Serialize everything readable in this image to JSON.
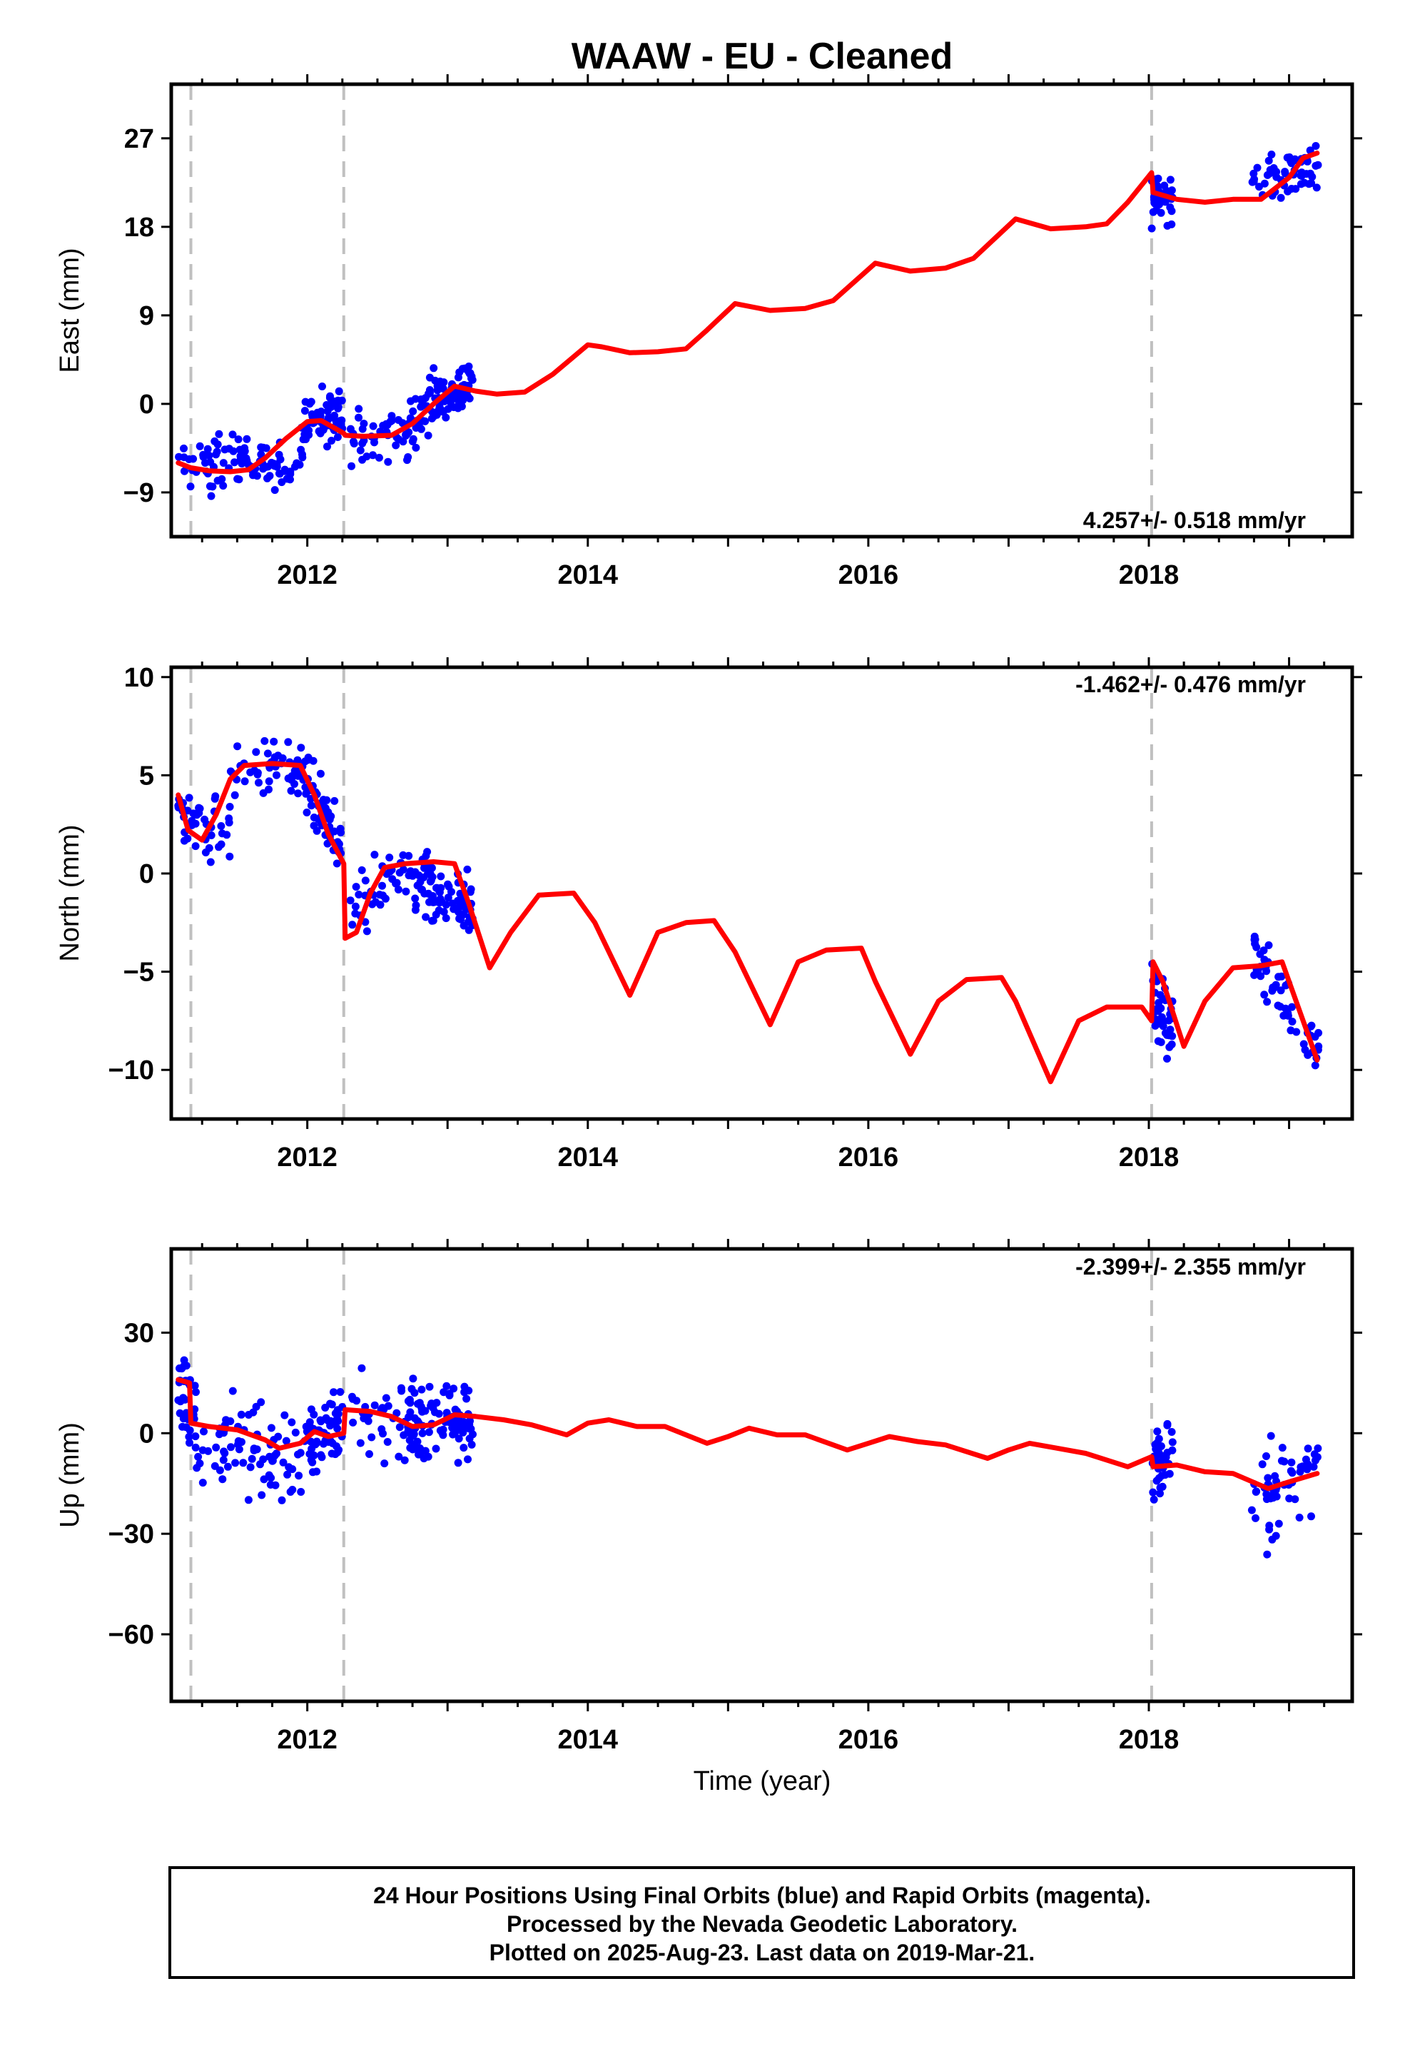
{
  "title": "WAAW  - EU - Cleaned",
  "xlabel": "Time (year)",
  "colors": {
    "data": "#0000ff",
    "model": "#ff0000",
    "break": "#c0c0c0",
    "frame": "#000000"
  },
  "footer": {
    "lines": [
      "24 Hour Positions Using Final Orbits (blue) and Rapid Orbits (magenta).",
      "Processed by the Nevada Geodetic Laboratory.",
      "Plotted on 2025-Aug-23. Last data on 2019-Mar-21."
    ]
  },
  "chart_data": [
    {
      "type": "scatter",
      "name": "east",
      "ylabel": "East (mm)",
      "rate": "4.257+/- 0.518 mm/yr",
      "xlim": [
        2011.03,
        2019.45
      ],
      "ylim": [
        -13.5,
        32.5
      ],
      "yticks": [
        27,
        18,
        9,
        0,
        -9
      ],
      "ytick_labels": [
        "27",
        "18",
        "9",
        "0",
        "−9"
      ],
      "xticks": [
        2012,
        2014,
        2016,
        2018
      ],
      "xtick_labels": [
        "2012",
        "2014",
        "2016",
        "2018"
      ],
      "breaks": [
        2011.17,
        2012.26,
        2018.02
      ],
      "data_segments": [
        {
          "x0": 2011.08,
          "x1": 2011.98,
          "y0": -6.5,
          "y1": -5.5,
          "spread": 2.6,
          "n": 95
        },
        {
          "x0": 2011.98,
          "x1": 2012.25,
          "y0": -2.0,
          "y1": -1.0,
          "spread": 2.7,
          "n": 60
        },
        {
          "x0": 2012.3,
          "x1": 2012.75,
          "y0": -3.5,
          "y1": -2.5,
          "spread": 2.6,
          "n": 45
        },
        {
          "x0": 2012.75,
          "x1": 2013.18,
          "y0": -1.5,
          "y1": 2.5,
          "spread": 2.7,
          "n": 90
        },
        {
          "x0": 2018.02,
          "x1": 2018.17,
          "y0": 20.5,
          "y1": 21.5,
          "spread": 2.4,
          "n": 40
        },
        {
          "x0": 2018.73,
          "x1": 2019.22,
          "y0": 23.0,
          "y1": 24.0,
          "spread": 2.4,
          "n": 55
        }
      ],
      "model": {
        "x": [
          2011.08,
          2011.17,
          2011.3,
          2011.45,
          2011.58,
          2011.7,
          2011.85,
          2012.0,
          2012.1,
          2012.2,
          2012.26,
          2012.27,
          2012.4,
          2012.6,
          2012.75,
          2012.9,
          2013.05,
          2013.2,
          2013.35,
          2013.55,
          2013.75,
          2014.0,
          2014.1,
          2014.3,
          2014.5,
          2014.7,
          2014.85,
          2015.05,
          2015.3,
          2015.55,
          2015.75,
          2016.05,
          2016.3,
          2016.55,
          2016.75,
          2017.05,
          2017.3,
          2017.55,
          2017.7,
          2017.85,
          2018.02,
          2018.03,
          2018.2,
          2018.4,
          2018.6,
          2018.8,
          2019.0,
          2019.1,
          2019.2
        ],
        "y": [
          -6.0,
          -6.5,
          -6.8,
          -6.9,
          -6.7,
          -5.5,
          -3.5,
          -1.8,
          -1.7,
          -2.5,
          -3.0,
          -3.2,
          -3.3,
          -3.2,
          -2.0,
          0.0,
          1.8,
          1.3,
          1.0,
          1.2,
          3.0,
          6.0,
          5.8,
          5.2,
          5.3,
          5.6,
          7.5,
          10.2,
          9.5,
          9.7,
          10.5,
          14.3,
          13.5,
          13.8,
          14.8,
          18.8,
          17.8,
          18.0,
          18.3,
          20.5,
          23.5,
          21.5,
          20.8,
          20.5,
          20.8,
          20.8,
          23.0,
          25.0,
          25.5
        ]
      }
    },
    {
      "type": "scatter",
      "name": "north",
      "ylabel": "North (mm)",
      "rate": "-1.462+/- 0.476 mm/yr",
      "xlim": [
        2011.03,
        2019.45
      ],
      "ylim": [
        -12.5,
        10.5
      ],
      "yticks": [
        10,
        5,
        0,
        -5,
        -10
      ],
      "ytick_labels": [
        "10",
        "5",
        "0",
        "−5",
        "−10"
      ],
      "xticks": [
        2012,
        2014,
        2016,
        2018
      ],
      "xtick_labels": [
        "2012",
        "2014",
        "2016",
        "2018"
      ],
      "breaks": [
        2011.17,
        2012.26,
        2018.02
      ],
      "data_segments": [
        {
          "x0": 2011.08,
          "x1": 2011.45,
          "y0": 3.0,
          "y1": 2.0,
          "spread": 1.6,
          "n": 45
        },
        {
          "x0": 2011.45,
          "x1": 2011.98,
          "y0": 5.0,
          "y1": 5.5,
          "spread": 1.3,
          "n": 55
        },
        {
          "x0": 2011.98,
          "x1": 2012.25,
          "y0": 4.5,
          "y1": 1.0,
          "spread": 1.6,
          "n": 60
        },
        {
          "x0": 2012.3,
          "x1": 2012.75,
          "y0": -2.0,
          "y1": 0.5,
          "spread": 1.5,
          "n": 40
        },
        {
          "x0": 2012.75,
          "x1": 2013.18,
          "y0": -0.5,
          "y1": -1.5,
          "spread": 1.6,
          "n": 90
        },
        {
          "x0": 2018.02,
          "x1": 2018.17,
          "y0": -6.5,
          "y1": -8.0,
          "spread": 1.5,
          "n": 40
        },
        {
          "x0": 2018.73,
          "x1": 2019.22,
          "y0": -4.0,
          "y1": -9.0,
          "spread": 1.4,
          "n": 55
        }
      ],
      "model": {
        "x": [
          2011.08,
          2011.15,
          2011.25,
          2011.35,
          2011.45,
          2011.55,
          2011.75,
          2011.95,
          2012.05,
          2012.15,
          2012.26,
          2012.27,
          2012.35,
          2012.45,
          2012.55,
          2012.7,
          2012.9,
          2013.05,
          2013.15,
          2013.3,
          2013.45,
          2013.65,
          2013.9,
          2014.05,
          2014.3,
          2014.5,
          2014.7,
          2014.9,
          2015.05,
          2015.3,
          2015.5,
          2015.7,
          2015.95,
          2016.05,
          2016.3,
          2016.5,
          2016.7,
          2016.95,
          2017.05,
          2017.3,
          2017.5,
          2017.7,
          2017.95,
          2018.02,
          2018.03,
          2018.1,
          2018.25,
          2018.4,
          2018.6,
          2018.8,
          2018.95,
          2019.05,
          2019.2
        ],
        "y": [
          4.0,
          2.2,
          1.7,
          3.0,
          4.8,
          5.5,
          5.6,
          5.5,
          4.0,
          2.0,
          0.5,
          -3.3,
          -3.0,
          -1.0,
          0.3,
          0.5,
          0.6,
          0.5,
          -1.5,
          -4.8,
          -3.0,
          -1.1,
          -1.0,
          -2.5,
          -6.2,
          -3.0,
          -2.5,
          -2.4,
          -4.0,
          -7.7,
          -4.5,
          -3.9,
          -3.8,
          -5.5,
          -9.2,
          -6.5,
          -5.4,
          -5.3,
          -6.5,
          -10.6,
          -7.5,
          -6.8,
          -6.8,
          -7.5,
          -4.5,
          -5.5,
          -8.8,
          -6.5,
          -4.8,
          -4.7,
          -4.5,
          -6.5,
          -9.5
        ]
      }
    },
    {
      "type": "scatter",
      "name": "up",
      "ylabel": "Up (mm)",
      "rate": "-2.399+/- 2.355 mm/yr",
      "xlim": [
        2011.03,
        2019.45
      ],
      "ylim": [
        -80,
        55
      ],
      "yticks": [
        30,
        0,
        -30,
        -60
      ],
      "ytick_labels": [
        "30",
        "0",
        "−30",
        "−60"
      ],
      "xticks": [
        2012,
        2014,
        2016,
        2018
      ],
      "xtick_labels": [
        "2012",
        "2014",
        "2016",
        "2018"
      ],
      "breaks": [
        2011.17,
        2012.26,
        2018.02
      ],
      "data_segments": [
        {
          "x0": 2011.08,
          "x1": 2011.2,
          "y0": 15.0,
          "y1": 5.0,
          "spread": 11.0,
          "n": 30
        },
        {
          "x0": 2011.2,
          "x1": 2011.98,
          "y0": 0.0,
          "y1": -8.0,
          "spread": 13.0,
          "n": 80
        },
        {
          "x0": 2011.98,
          "x1": 2012.25,
          "y0": -3.0,
          "y1": 3.0,
          "spread": 12.0,
          "n": 60
        },
        {
          "x0": 2012.3,
          "x1": 2012.75,
          "y0": 7.0,
          "y1": 3.0,
          "spread": 13.0,
          "n": 45
        },
        {
          "x0": 2012.75,
          "x1": 2013.18,
          "y0": 2.0,
          "y1": 5.0,
          "spread": 12.0,
          "n": 90
        },
        {
          "x0": 2018.02,
          "x1": 2018.17,
          "y0": -8.0,
          "y1": -5.0,
          "spread": 12.0,
          "n": 40
        },
        {
          "x0": 2018.73,
          "x1": 2019.22,
          "y0": -22.0,
          "y1": -12.0,
          "spread": 12.0,
          "n": 55
        }
      ],
      "model": {
        "x": [
          2011.08,
          2011.16,
          2011.17,
          2011.3,
          2011.5,
          2011.7,
          2011.8,
          2011.95,
          2012.05,
          2012.15,
          2012.26,
          2012.27,
          2012.45,
          2012.6,
          2012.75,
          2012.9,
          2013.05,
          2013.2,
          2013.4,
          2013.6,
          2013.85,
          2014.0,
          2014.15,
          2014.35,
          2014.55,
          2014.85,
          2015.0,
          2015.15,
          2015.35,
          2015.55,
          2015.85,
          2016.0,
          2016.15,
          2016.35,
          2016.55,
          2016.85,
          2017.0,
          2017.15,
          2017.35,
          2017.55,
          2017.85,
          2018.02,
          2018.03,
          2018.2,
          2018.4,
          2018.6,
          2018.85,
          2019.0,
          2019.2
        ],
        "y": [
          16.0,
          15.0,
          3.0,
          2.0,
          1.0,
          -2.0,
          -4.5,
          -3.0,
          0.5,
          -1.0,
          0.0,
          7.0,
          6.5,
          5.0,
          2.0,
          2.5,
          5.5,
          5.0,
          4.0,
          2.5,
          -0.5,
          3.0,
          4.0,
          2.0,
          2.0,
          -3.0,
          -1.0,
          1.5,
          -0.5,
          -0.5,
          -5.0,
          -3.0,
          -1.0,
          -2.5,
          -3.5,
          -7.5,
          -5.0,
          -3.0,
          -4.5,
          -6.0,
          -10.0,
          -7.0,
          -10.0,
          -9.5,
          -11.5,
          -12.0,
          -16.5,
          -14.5,
          -12.0
        ]
      }
    }
  ]
}
